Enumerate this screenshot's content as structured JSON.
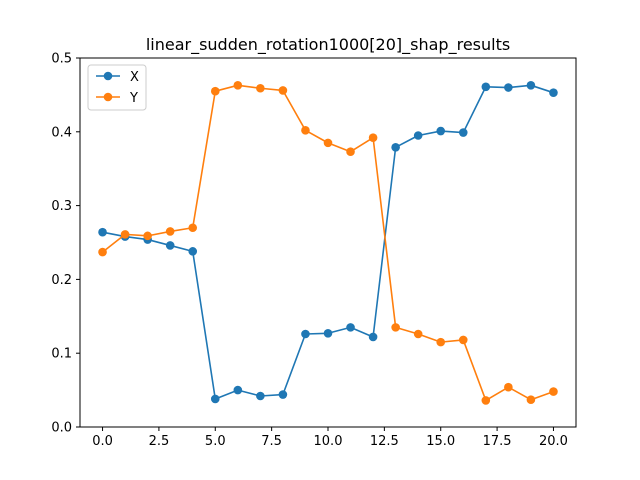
{
  "chart_data": {
    "type": "line",
    "title": "linear_sudden_rotation1000[20]_shap_results",
    "xlabel": "",
    "ylabel": "",
    "xlim": [
      -1.0,
      21.0
    ],
    "ylim": [
      0.0,
      0.5
    ],
    "xticks": [
      0.0,
      2.5,
      5.0,
      7.5,
      10.0,
      12.5,
      15.0,
      17.5,
      20.0
    ],
    "xtick_labels": [
      "0.0",
      "2.5",
      "5.0",
      "7.5",
      "10.0",
      "12.5",
      "15.0",
      "17.5",
      "20.0"
    ],
    "yticks": [
      0.0,
      0.1,
      0.2,
      0.3,
      0.4,
      0.5
    ],
    "ytick_labels": [
      "0.0",
      "0.1",
      "0.2",
      "0.3",
      "0.4",
      "0.5"
    ],
    "grid": false,
    "legend_position": "top-left",
    "x": [
      0,
      1,
      2,
      3,
      4,
      5,
      6,
      7,
      8,
      9,
      10,
      11,
      12,
      13,
      14,
      15,
      16,
      17,
      18,
      19,
      20
    ],
    "series": [
      {
        "name": "X",
        "color": "#1f77b4",
        "marker": "circle",
        "values": [
          0.264,
          0.258,
          0.254,
          0.246,
          0.238,
          0.038,
          0.05,
          0.042,
          0.044,
          0.126,
          0.127,
          0.135,
          0.122,
          0.379,
          0.395,
          0.401,
          0.399,
          0.461,
          0.46,
          0.463,
          0.453
        ]
      },
      {
        "name": "Y",
        "color": "#ff7f0e",
        "marker": "circle",
        "values": [
          0.237,
          0.261,
          0.259,
          0.265,
          0.27,
          0.455,
          0.463,
          0.459,
          0.456,
          0.402,
          0.385,
          0.373,
          0.392,
          0.135,
          0.126,
          0.115,
          0.118,
          0.036,
          0.054,
          0.037,
          0.048
        ]
      }
    ]
  }
}
